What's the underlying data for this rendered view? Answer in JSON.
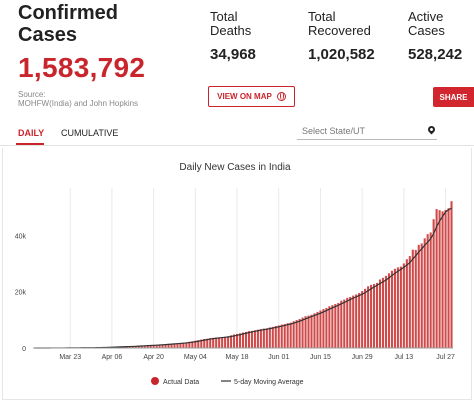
{
  "header": {
    "title_line1": "Confirmed",
    "title_line2": "Cases",
    "confirmed_value": "1,583,792",
    "source_line1": "Source:",
    "source_line2": "MOHFW(India) and John Hopkins"
  },
  "stats": [
    {
      "label_line1": "Total",
      "label_line2": "Deaths",
      "value": "34,968"
    },
    {
      "label_line1": "Total",
      "label_line2": "Recovered",
      "value": "1,020,582"
    },
    {
      "label_line1": "Active",
      "label_line2": "Cases",
      "value": "528,242"
    }
  ],
  "buttons": {
    "map": "VIEW ON MAP",
    "share": "SHARE"
  },
  "tabs": {
    "daily": "DAILY",
    "cumulative": "CUMULATIVE",
    "active": "daily"
  },
  "state_select": {
    "placeholder": "Select State/UT"
  },
  "colors": {
    "accent": "#c9252c",
    "bar": "#d04a4a",
    "line": "#333333"
  },
  "icons": {
    "map": "globe-icon",
    "location": "location-pin-icon"
  },
  "chart_data": {
    "type": "bar",
    "title": "Daily New Cases in India",
    "xlabel": "",
    "ylabel": "",
    "ylim": [
      0,
      55000
    ],
    "yticks": [
      0,
      20000,
      40000
    ],
    "ytick_labels": [
      "0",
      "20k",
      "40k"
    ],
    "grid": "vertical",
    "legend_position": "bottom",
    "start_date": "2020-03-11",
    "xtick_labels": [
      "Mar 23",
      "Apr 06",
      "Apr 20",
      "May 04",
      "May 18",
      "Jun 01",
      "Jun 15",
      "Jun 29",
      "Jul 13",
      "Jul 27"
    ],
    "series": [
      {
        "name": "Actual Data",
        "type": "bar"
      },
      {
        "name": "5-day Moving Average",
        "type": "line"
      }
    ],
    "values": [
      0,
      5,
      10,
      10,
      15,
      20,
      20,
      25,
      30,
      30,
      40,
      50,
      60,
      70,
      80,
      90,
      90,
      100,
      110,
      120,
      140,
      170,
      200,
      220,
      250,
      300,
      350,
      400,
      430,
      480,
      520,
      560,
      600,
      650,
      700,
      780,
      830,
      900,
      950,
      1000,
      1050,
      1100,
      1200,
      1300,
      1400,
      1450,
      1500,
      1600,
      1700,
      1800,
      1900,
      2000,
      2200,
      2400,
      2600,
      2800,
      3000,
      3200,
      3300,
      3500,
      3600,
      3700,
      3800,
      3900,
      4000,
      4200,
      4500,
      4800,
      5000,
      5200,
      5500,
      5700,
      6000,
      6100,
      6300,
      6500,
      6700,
      6900,
      7000,
      7300,
      7500,
      7800,
      8000,
      8300,
      8500,
      8800,
      9000,
      9500,
      9900,
      10300,
      10800,
      11300,
      11500,
      11800,
      12300,
      12800,
      13300,
      13800,
      14200,
      14800,
      15200,
      15600,
      16000,
      16800,
      17200,
      17800,
      18100,
      18600,
      19000,
      19500,
      20200,
      21000,
      21900,
      22400,
      22700,
      23100,
      24300,
      24900,
      25600,
      26500,
      27400,
      28100,
      28600,
      28900,
      30000,
      31500,
      32600,
      34900,
      34800,
      36600,
      37100,
      38900,
      40400,
      41000,
      45700,
      49300,
      48900,
      48500,
      49000,
      49600,
      52100
    ]
  },
  "legend": {
    "actual": "Actual Data",
    "moving_avg": "5-day Moving Average"
  }
}
